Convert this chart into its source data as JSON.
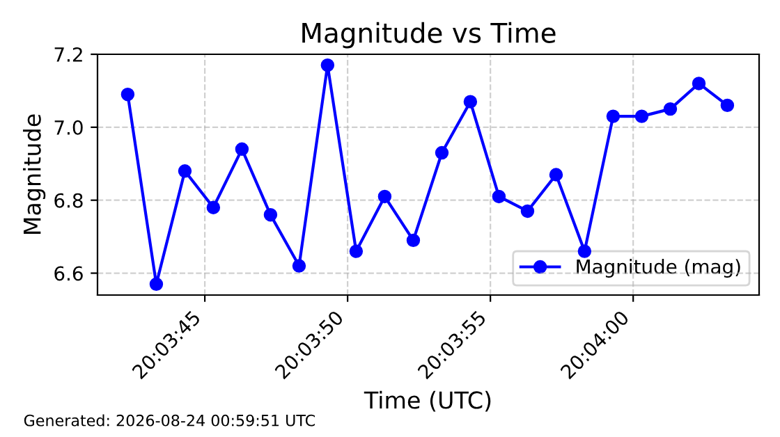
{
  "chart_data": {
    "type": "line",
    "title": "Magnitude vs Time",
    "xlabel": "Time (UTC)",
    "ylabel": "Magnitude",
    "x": [
      20.06175,
      20.062028,
      20.062306,
      20.062583,
      20.062861,
      20.063139,
      20.063417,
      20.063694,
      20.063972,
      20.06425,
      20.064528,
      20.064806,
      20.065083,
      20.065361,
      20.065639,
      20.065917,
      20.066194,
      20.066472,
      20.06675,
      20.067028,
      20.067306,
      20.067583
    ],
    "series": [
      {
        "name": "Magnitude (mag)",
        "color": "#0000ff",
        "values": [
          7.09,
          6.57,
          6.88,
          6.78,
          6.94,
          6.76,
          6.62,
          7.17,
          6.66,
          6.81,
          6.69,
          6.93,
          7.07,
          6.81,
          6.77,
          6.87,
          6.66,
          7.03,
          7.03,
          7.05,
          7.12,
          7.06
        ]
      }
    ],
    "xlim": [
      20.061456,
      20.067892
    ],
    "xticks": [
      {
        "value": 20.0625,
        "label": "20:03:45"
      },
      {
        "value": 20.063889,
        "label": "20:03:50"
      },
      {
        "value": 20.065278,
        "label": "20:03:55"
      },
      {
        "value": 20.066667,
        "label": "20:04:00"
      }
    ],
    "ylim": [
      6.54,
      7.2
    ],
    "yticks": [
      {
        "value": 6.6,
        "label": "6.6"
      },
      {
        "value": 6.8,
        "label": "6.8"
      },
      {
        "value": 7.0,
        "label": "7.0"
      },
      {
        "value": 7.2,
        "label": "7.2"
      }
    ],
    "grid": true,
    "legend": "bottom right",
    "marker": "circle",
    "line_style": "solid",
    "annotations": [
      "Generated: 2026-08-24 00:59:51 UTC"
    ]
  }
}
